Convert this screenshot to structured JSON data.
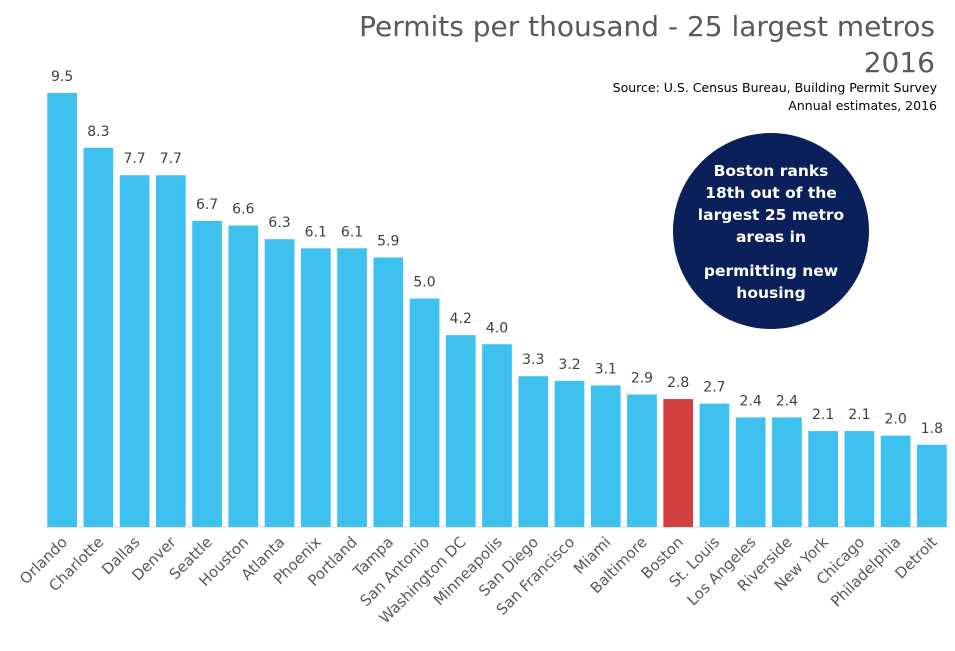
{
  "chart_data": {
    "type": "bar",
    "title": "Permits per thousand - 25 largest metros",
    "subtitle": "2016",
    "source_lines": [
      "Source: U.S. Census Bureau, Building Permit Survey",
      "Annual estimates, 2016"
    ],
    "callout_lines": [
      "Boston ranks",
      "18th out of the",
      "largest 25 metro",
      "areas in",
      "permitting new",
      "housing"
    ],
    "categories": [
      "Orlando",
      "Charlotte",
      "Dallas",
      "Denver",
      "Seattle",
      "Houston",
      "Atlanta",
      "Phoenix",
      "Portland",
      "Tampa",
      "San Antonio",
      "Washington DC",
      "Minneapolis",
      "San Diego",
      "San Francisco",
      "Miami",
      "Baltimore",
      "Boston",
      "St. Louis",
      "Los Angeles",
      "Riverside",
      "New York",
      "Chicago",
      "Philadelphia",
      "Detroit"
    ],
    "values": [
      9.5,
      8.3,
      7.7,
      7.7,
      6.7,
      6.6,
      6.3,
      6.1,
      6.1,
      5.9,
      5.0,
      4.2,
      4.0,
      3.3,
      3.2,
      3.1,
      2.9,
      2.8,
      2.7,
      2.4,
      2.4,
      2.1,
      2.1,
      2.0,
      1.8
    ],
    "value_labels": [
      "9.5",
      "8.3",
      "7.7",
      "7.7",
      "6.7",
      "6.6",
      "6.3",
      "6.1",
      "6.1",
      "5.9",
      "5.0",
      "4.2",
      "4.0",
      "3.3",
      "3.2",
      "3.1",
      "2.9",
      "2.8",
      "2.7",
      "2.4",
      "2.4",
      "2.1",
      "2.1",
      "2.0",
      "1.8"
    ],
    "highlight_category": "Boston",
    "ylim": [
      0,
      9.5
    ],
    "grid": false,
    "legend": "none",
    "colors": {
      "bar": "#3FC1F0",
      "highlight": "#D13F3F",
      "callout": "#0B1F5A",
      "baseline": "#D9D9D9"
    }
  }
}
